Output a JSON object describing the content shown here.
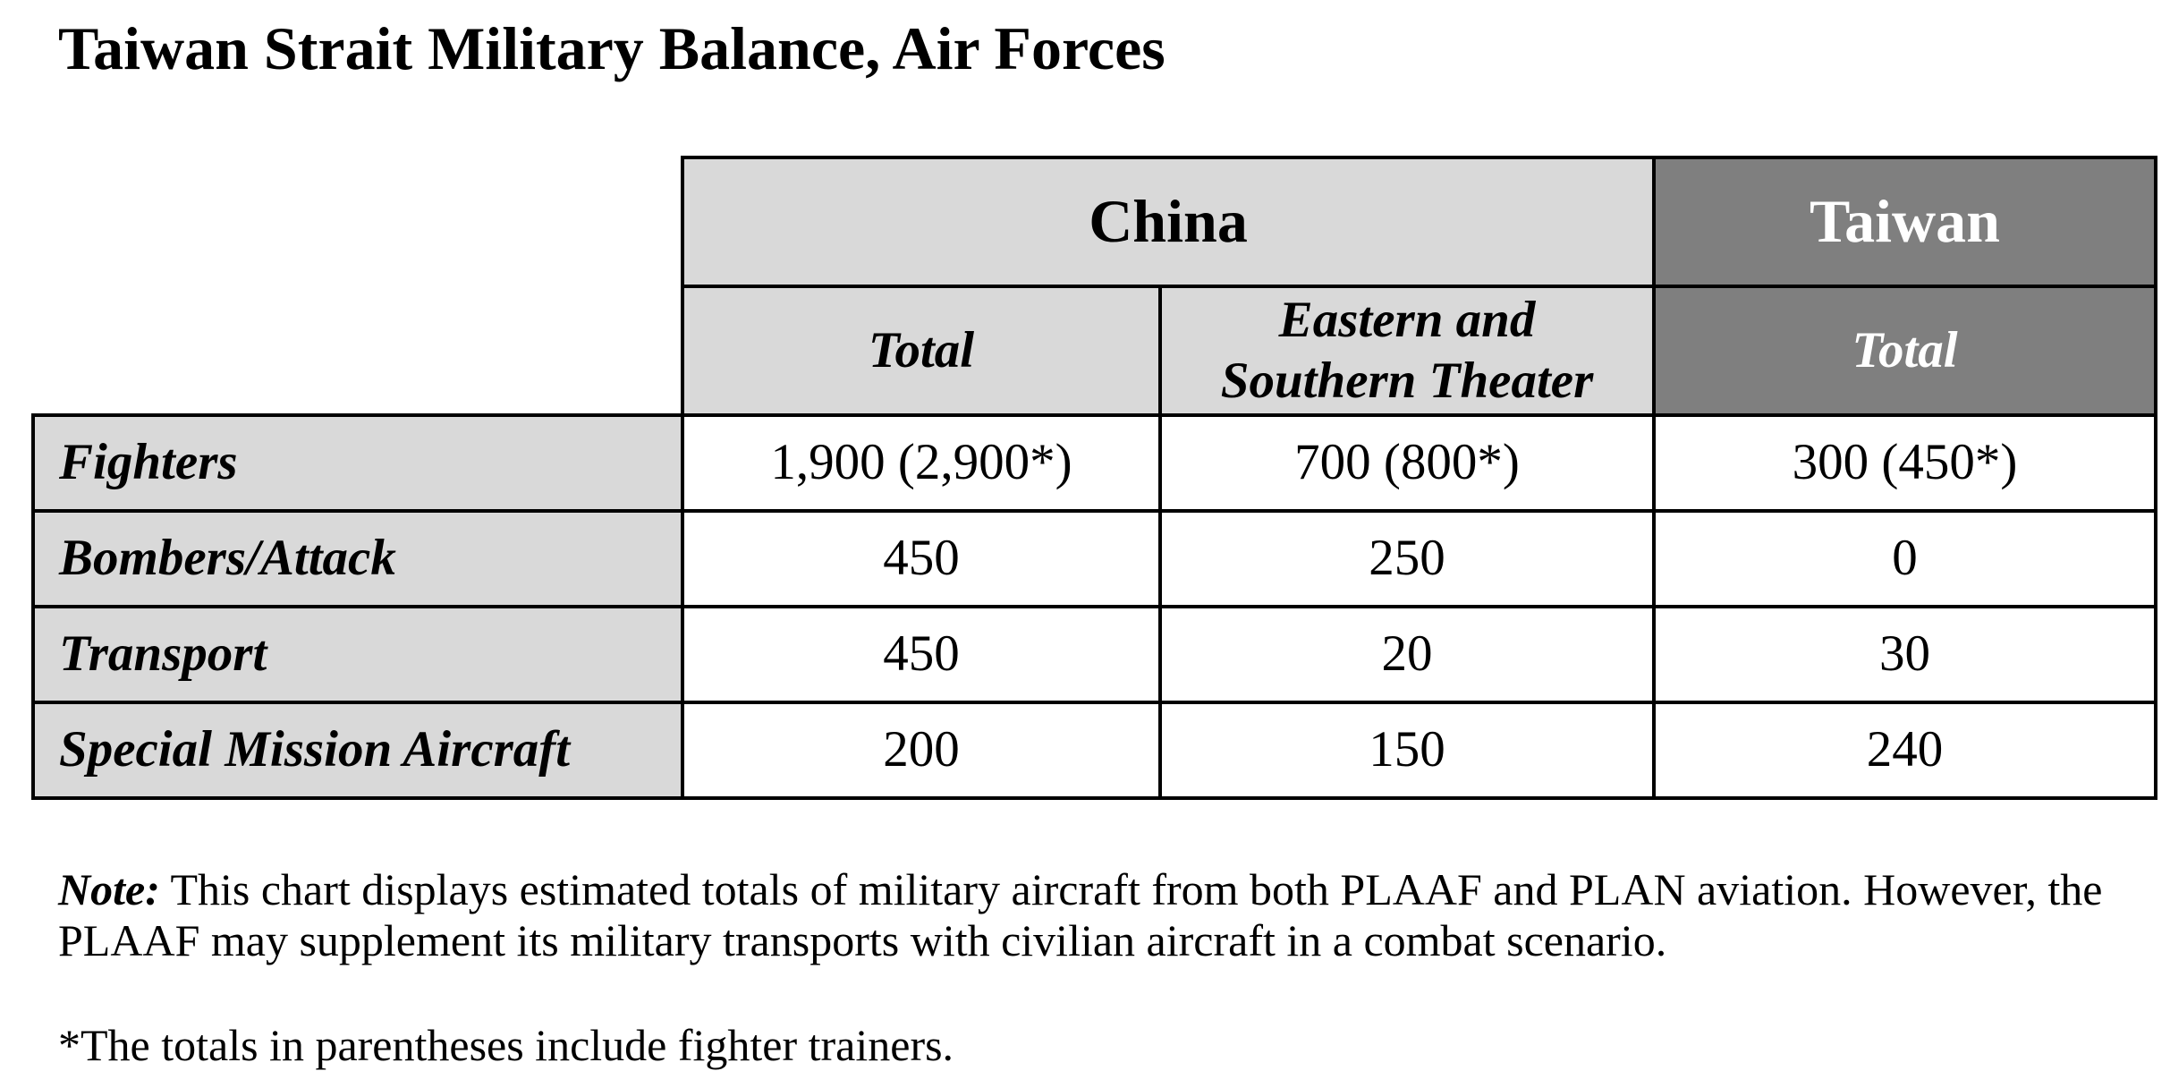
{
  "title": "Taiwan Strait Military Balance, Air Forces",
  "table": {
    "groups": {
      "china": "China",
      "taiwan": "Taiwan"
    },
    "subheaders": {
      "china_total": "Total",
      "china_theater_line1": "Eastern and",
      "china_theater_line2": "Southern Theater",
      "taiwan_total": "Total"
    },
    "rows": [
      {
        "label": "Fighters",
        "china_total": "1,900 (2,900*)",
        "china_theater": "700 (800*)",
        "taiwan_total": "300 (450*)"
      },
      {
        "label": "Bombers/Attack",
        "china_total": "450",
        "china_theater": "250",
        "taiwan_total": "0"
      },
      {
        "label": "Transport",
        "china_total": "450",
        "china_theater": "20",
        "taiwan_total": "30"
      },
      {
        "label": "Special Mission Aircraft",
        "china_total": "200",
        "china_theater": "150",
        "taiwan_total": "240"
      }
    ]
  },
  "note": {
    "label": "Note:",
    "text": " This chart displays estimated totals of military aircraft from both PLAAF and PLAN aviation. However, the PLAAF may supplement its military transports with civilian aircraft in a combat scenario."
  },
  "footnote": "*The totals in parentheses include fighter trainers.",
  "colors": {
    "china_header_bg": "#d9d9d9",
    "taiwan_header_bg": "#7f7f7f",
    "row_label_bg": "#d9d9d9"
  }
}
